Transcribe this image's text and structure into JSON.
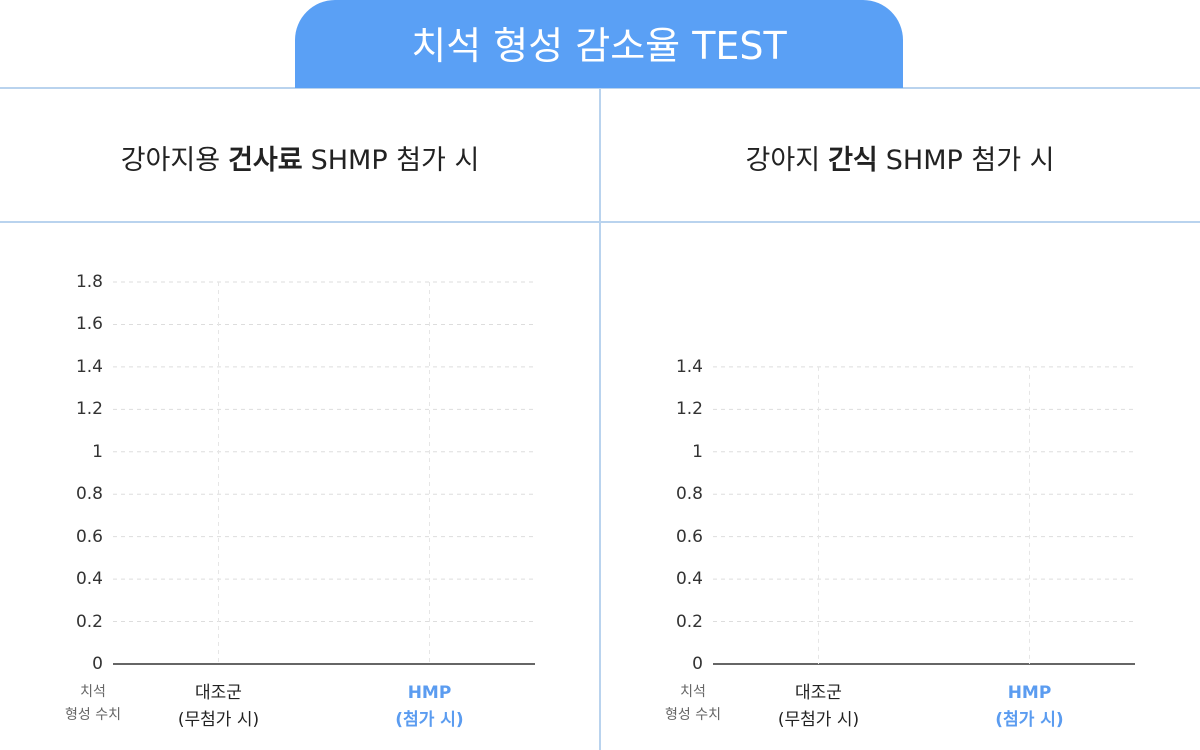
{
  "header": {
    "title": "치석 형성 감소율 TEST"
  },
  "chart_data": [
    {
      "type": "bar",
      "title": [
        "강아지용",
        "건사료",
        "SHMP 첨가 시"
      ],
      "y_label": "치석\n형성 수치",
      "categories": [
        "대조군\n(무첨가 시)",
        "HMP\n(첨가 시)"
      ],
      "category_colors": [
        "#222222",
        "#5b9cf0"
      ],
      "ylim": [
        0,
        1.8
      ],
      "yticks": [
        0,
        0.2,
        0.4,
        0.6,
        0.8,
        1,
        1.2,
        1.4,
        1.6,
        1.8
      ],
      "grid": true
    },
    {
      "type": "bar",
      "title": [
        "강아지",
        "간식",
        "SHMP 첨가 시"
      ],
      "y_label": "치석\n형성 수치",
      "categories": [
        "대조군\n(무첨가 시)",
        "HMP\n(첨가 시)"
      ],
      "category_colors": [
        "#222222",
        "#5b9cf0"
      ],
      "ylim": [
        0,
        1.4
      ],
      "yticks": [
        0,
        0.2,
        0.4,
        0.6,
        0.8,
        1,
        1.2,
        1.4
      ],
      "grid": true
    }
  ]
}
